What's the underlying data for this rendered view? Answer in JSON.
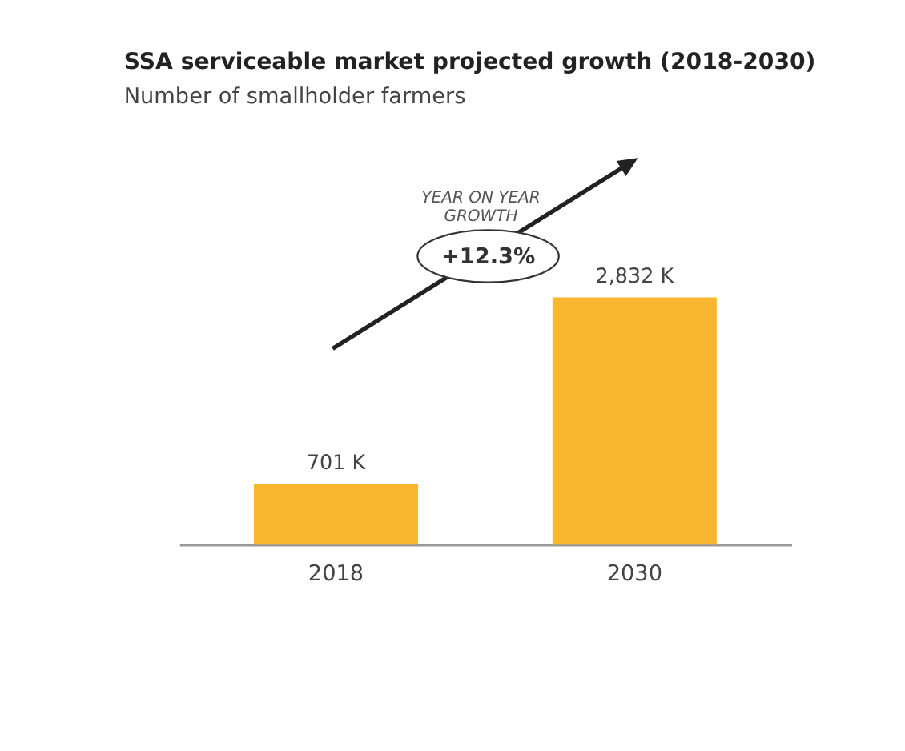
{
  "chart_data": {
    "type": "bar",
    "title": "SSA serviceable market projected growth (2018-2030)",
    "subtitle": "Number of smallholder farmers",
    "categories": [
      "2018",
      "2030"
    ],
    "values": [
      701,
      2832
    ],
    "color": "#f9b731",
    "value_labels": [
      "701 K",
      "2,832 K"
    ],
    "annotations": [
      "YEAR ON YEAR GROWTH",
      "+12.3%"
    ]
  }
}
